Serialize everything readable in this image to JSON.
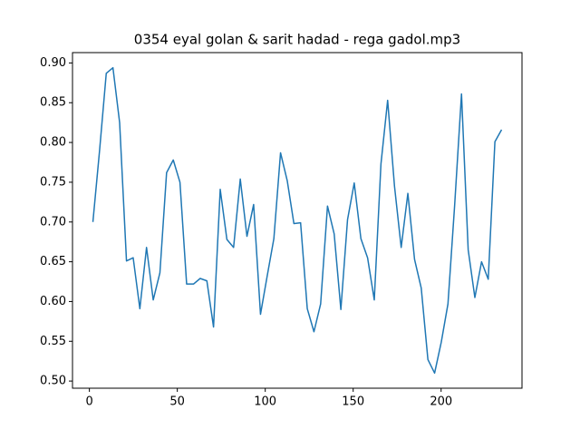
{
  "chart_data": {
    "type": "line",
    "title": "0354 eyal golan & sarit hadad - rega gadol.mp3",
    "x": [
      2.0,
      5.8,
      9.6,
      13.4,
      17.2,
      21.1,
      24.9,
      28.7,
      32.5,
      36.3,
      40.1,
      43.9,
      47.7,
      51.5,
      55.3,
      59.2,
      63.0,
      66.8,
      70.6,
      74.4,
      78.2,
      82.0,
      85.8,
      89.6,
      93.4,
      97.3,
      101.1,
      104.9,
      108.7,
      112.5,
      116.3,
      120.1,
      123.9,
      127.7,
      131.5,
      135.4,
      139.2,
      143.0,
      146.8,
      150.6,
      154.4,
      158.2,
      162.0,
      165.8,
      169.6,
      173.5,
      177.3,
      181.1,
      184.9,
      188.7,
      192.5,
      196.3,
      200.1,
      203.9,
      207.7,
      211.6,
      215.4,
      219.2,
      223.0,
      226.8,
      230.6,
      234.4
    ],
    "series": [
      {
        "color": "#1f77b4",
        "values": [
          0.7,
          0.79,
          0.887,
          0.894,
          0.825,
          0.651,
          0.655,
          0.591,
          0.668,
          0.602,
          0.636,
          0.762,
          0.778,
          0.75,
          0.622,
          0.622,
          0.629,
          0.626,
          0.568,
          0.741,
          0.678,
          0.668,
          0.754,
          0.682,
          0.722,
          0.584,
          0.632,
          0.679,
          0.787,
          0.752,
          0.698,
          0.699,
          0.591,
          0.562,
          0.597,
          0.72,
          0.685,
          0.59,
          0.703,
          0.749,
          0.679,
          0.655,
          0.602,
          0.773,
          0.853,
          0.745,
          0.668,
          0.736,
          0.653,
          0.617,
          0.527,
          0.51,
          0.549,
          0.597,
          0.721,
          0.861,
          0.665,
          0.605,
          0.65,
          0.628,
          0.801,
          0.816
        ]
      }
    ],
    "xlim": [
      -9.6,
      246.0
    ],
    "ylim": [
      0.491,
      0.913
    ],
    "xticks": [
      0,
      50,
      100,
      150,
      200
    ],
    "yticks": [
      {
        "value": 0.5,
        "label": "0.50"
      },
      {
        "value": 0.55,
        "label": "0.55"
      },
      {
        "value": 0.6,
        "label": "0.60"
      },
      {
        "value": 0.65,
        "label": "0.65"
      },
      {
        "value": 0.7,
        "label": "0.70"
      },
      {
        "value": 0.75,
        "label": "0.75"
      },
      {
        "value": 0.8,
        "label": "0.80"
      },
      {
        "value": 0.85,
        "label": "0.85"
      },
      {
        "value": 0.9,
        "label": "0.90"
      }
    ]
  }
}
